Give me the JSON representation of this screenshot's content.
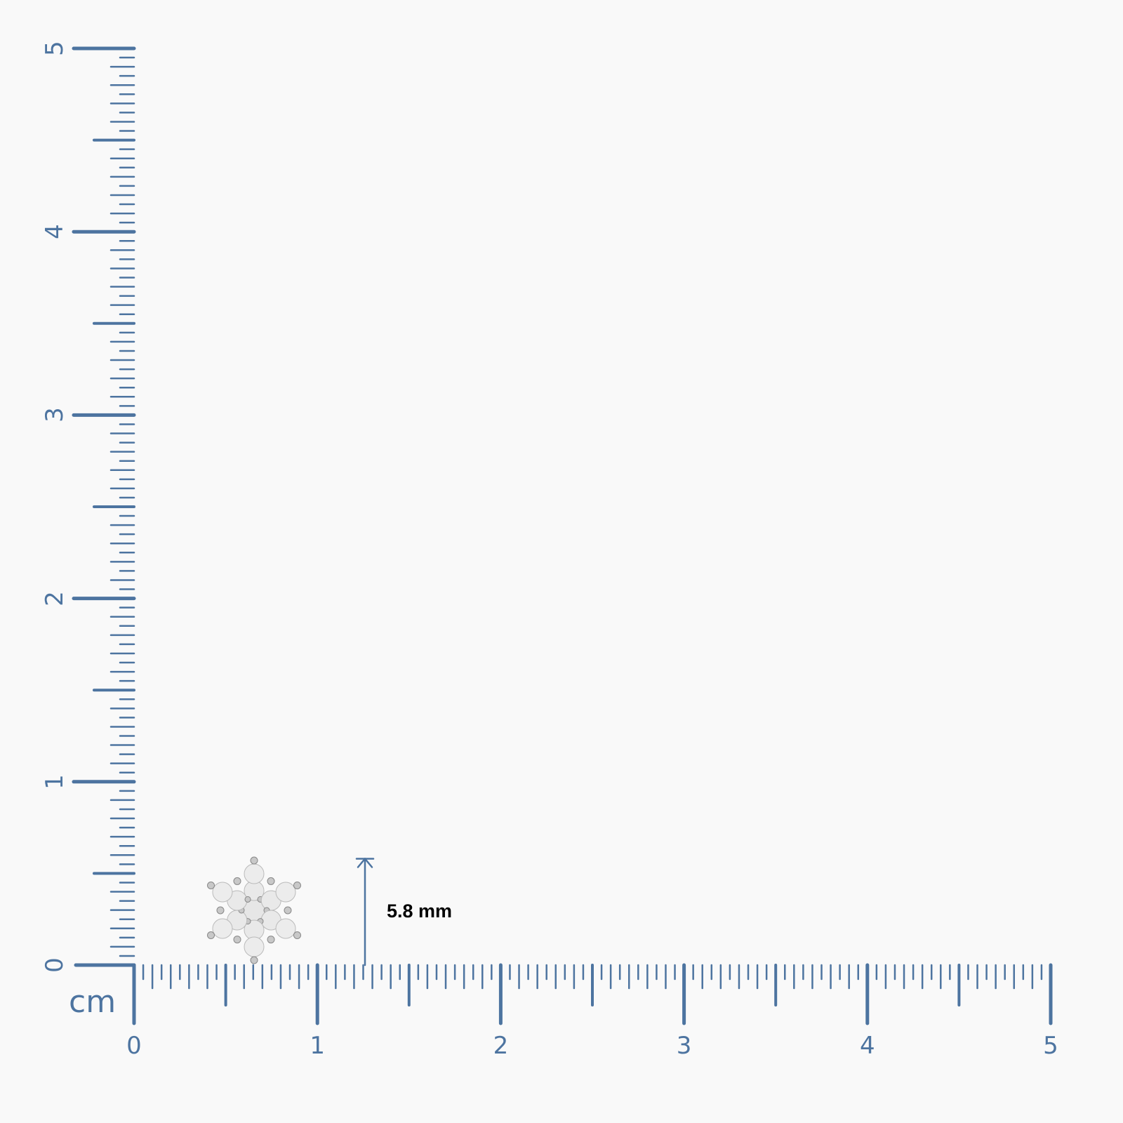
{
  "ruler": {
    "unit": "cm",
    "x_labels": [
      "0",
      "1",
      "2",
      "3",
      "4",
      "5"
    ],
    "y_labels": [
      "0",
      "1",
      "2",
      "3",
      "4",
      "5"
    ],
    "color": "#4d74a0"
  },
  "product": {
    "icon": "snowflake-diamond-earring",
    "measurement_label": "5.8 mm",
    "measurement_mm": 5.8
  }
}
